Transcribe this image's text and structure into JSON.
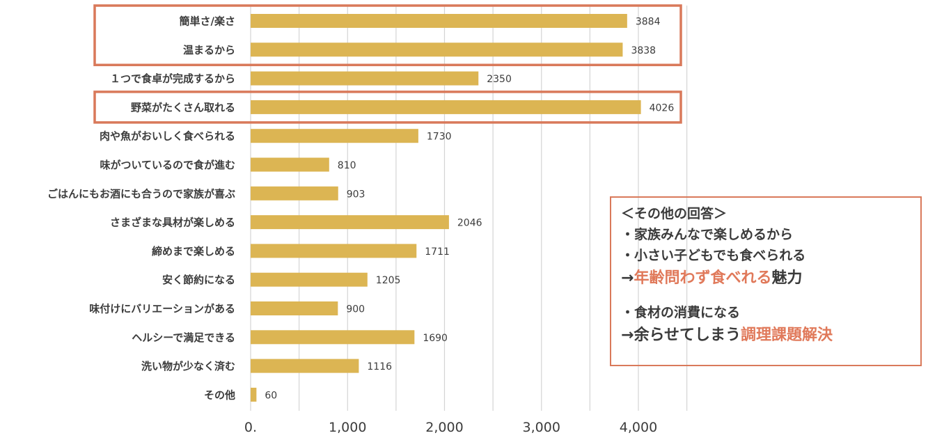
{
  "chart_data": {
    "type": "bar",
    "orientation": "horizontal",
    "categories": [
      "簡単さ/楽さ",
      "温まるから",
      "１つで食卓が完成するから",
      "野菜がたくさん取れる",
      "肉や魚がおいしく食べられる",
      "味がついているので食が進む",
      "ごはんにもお酒にも合うので家族が喜ぶ",
      "さまざまな具材が楽しめる",
      "締めまで楽しめる",
      "安く節約になる",
      "味付けにバリエーションがある",
      "ヘルシーで満足できる",
      "洗い物が少なく済む",
      "その他"
    ],
    "values": [
      3884,
      3838,
      2350,
      4026,
      1730,
      810,
      903,
      2046,
      1711,
      1205,
      900,
      1690,
      1116,
      60
    ],
    "value_labels": [
      "3884",
      "3838",
      "2350",
      "4026",
      "1730",
      "810",
      "903",
      "2046",
      "1711",
      "1205",
      "900",
      "1690",
      "1116",
      "60"
    ],
    "xlim": [
      0,
      4500
    ],
    "x_ticks": [
      0,
      500,
      1000,
      1500,
      2000,
      2500,
      3000,
      3500,
      4000,
      4500
    ],
    "x_tick_labels": [
      {
        "value": 0,
        "label": "0."
      },
      {
        "value": 1000,
        "label": "1,000"
      },
      {
        "value": 2000,
        "label": "2,000"
      },
      {
        "value": 3000,
        "label": "3,000"
      },
      {
        "value": 4000,
        "label": "4,000"
      }
    ],
    "grid": "vertical",
    "bar_color": "#dcb553",
    "grid_color": "#d4d4d4",
    "highlight_color": "#d9795a",
    "highlight_groups": [
      [
        0,
        1
      ],
      [
        3
      ]
    ]
  },
  "annotation": {
    "header": "＜その他の回答＞",
    "item1": "・家族みんなで楽しめるから",
    "item2": "・小さい子どもでも食べられる",
    "arrow1": "→",
    "result1_accent": "年齢問わず食べれる",
    "result1_rest": "魅力",
    "item3": "・食材の消費になる",
    "arrow2": "→",
    "result2_plain": "余らせてしまう",
    "result2_accent": "調理課題解決",
    "accent_color": "#e0795a",
    "border_color": "#d9795a"
  }
}
